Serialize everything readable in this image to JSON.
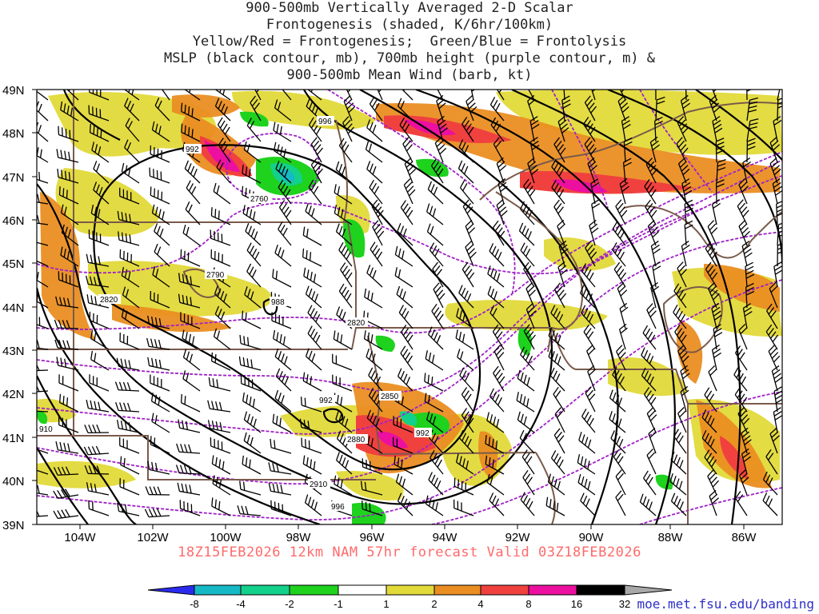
{
  "title_lines": [
    "900-500mb Vertically Averaged 2-D Scalar",
    "Frontogenesis (shaded, K/6hr/100km)",
    "Yellow/Red = Frontogenesis;  Green/Blue = Frontolysis",
    "MSLP (black contour, mb), 700mb height (purple contour, m) &",
    "900-500mb Mean Wind (barb, kt)"
  ],
  "footer": "18Z15FEB2026 12km NAM 57hr forecast Valid 03Z18FEB2026",
  "source_url": "moe.met.fsu.edu/banding",
  "lat_labels": [
    "49N",
    "48N",
    "47N",
    "46N",
    "45N",
    "44N",
    "43N",
    "42N",
    "41N",
    "40N",
    "39N"
  ],
  "lon_labels": [
    "104W",
    "102W",
    "100W",
    "98W",
    "96W",
    "94W",
    "92W",
    "90W",
    "88W",
    "86W"
  ],
  "colorbar": {
    "labels": [
      "-8",
      "-4",
      "-2",
      "-1",
      "1",
      "2",
      "4",
      "8",
      "16",
      "32"
    ],
    "colors": [
      "#2b2bf0",
      "#16b9c6",
      "#13d08a",
      "#1ed21e",
      "#ffffff",
      "#e2da39",
      "#ea8e22",
      "#f0413f",
      "#ec0fa0",
      "#000000",
      "#a8a8a8"
    ]
  },
  "contour_labels": {
    "mslp": [
      "996",
      "992",
      "988",
      "992",
      "992",
      "996"
    ],
    "height": [
      "2760",
      "2790",
      "2820",
      "2820",
      "2850",
      "2880",
      "2910",
      "910"
    ]
  }
}
